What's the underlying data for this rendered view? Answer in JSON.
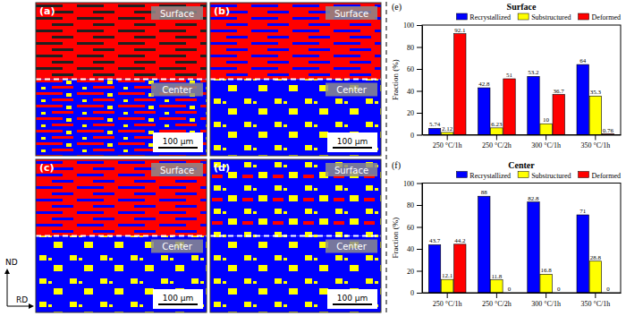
{
  "chart_data": [
    {
      "type": "bar",
      "title": "Surface",
      "annotations": [
        "(e)"
      ],
      "y_label": "Fraction (%)",
      "categories": [
        "250 °C/1h",
        "250 °C/2h",
        "300 °C/1h",
        "350 °C/1h"
      ],
      "series": [
        {
          "name": "Recrystallized",
          "color": "#0000ff",
          "values": [
            5.74,
            42.8,
            53.2,
            64
          ]
        },
        {
          "name": "Substructured",
          "color": "#ffff00",
          "values": [
            2.12,
            6.23,
            10,
            35.3
          ]
        },
        {
          "name": "Deformed",
          "color": "#ff0000",
          "values": [
            92.1,
            51,
            36.7,
            0.76
          ]
        }
      ],
      "ylim": [
        0,
        100
      ],
      "yticks": [
        0,
        20,
        40,
        60,
        80,
        100
      ],
      "grid": false,
      "legend": "top",
      "data_labels": true
    },
    {
      "type": "bar",
      "title": "Center",
      "annotations": [
        "(f)"
      ],
      "y_label": "Fraction (%)",
      "categories": [
        "250 °C/1h",
        "250 °C/2h",
        "300 °C/1h",
        "350 °C/1h"
      ],
      "series": [
        {
          "name": "Recrystallized",
          "color": "#0000ff",
          "values": [
            43.7,
            88,
            82.8,
            71
          ]
        },
        {
          "name": "Substructured",
          "color": "#ffff00",
          "values": [
            12.1,
            11.8,
            16.8,
            28.8
          ]
        },
        {
          "name": "Deformed",
          "color": "#ff0000",
          "values": [
            44.2,
            0,
            0,
            0
          ]
        }
      ],
      "ylim": [
        0,
        100
      ],
      "yticks": [
        0,
        20,
        40,
        60,
        80,
        100
      ],
      "grid": false,
      "legend": "top",
      "data_labels": true
    }
  ],
  "panels": [
    {
      "label": "(a)",
      "top": "Surface",
      "bottom": "Center",
      "scale_bar": "100 μm"
    },
    {
      "label": "(b)",
      "top": "Surface",
      "bottom": "Center",
      "scale_bar": "100 μm"
    },
    {
      "label": "(c)",
      "top": "Surface",
      "bottom": "Center",
      "scale_bar": "100 μm"
    },
    {
      "label": "(d)",
      "top": "Surface",
      "bottom": "Center",
      "scale_bar": "100 μm"
    }
  ],
  "directions": {
    "vertical": "ND",
    "horizontal": "RD"
  }
}
